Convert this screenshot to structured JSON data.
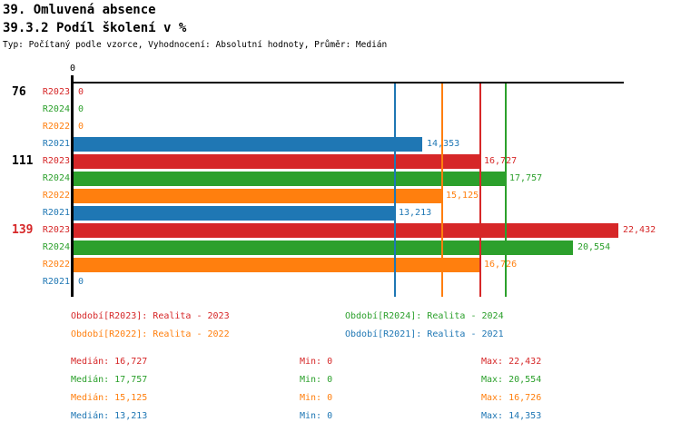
{
  "header": {
    "title1": "39. Omluvená absence",
    "title2": "39.3.2 Podíl školení v %",
    "meta": "Typ: Počítaný podle vzorce, Vyhodnocení: Absolutní hodnoty, Průměr: Medián"
  },
  "axis": {
    "zero_tick": "0"
  },
  "series_colors": {
    "R2023": "#d62728",
    "R2024": "#2ca02c",
    "R2022": "#ff7f0e",
    "R2021": "#1f77b4"
  },
  "chart_data": {
    "type": "bar",
    "orientation": "horizontal",
    "title": "39.3.2 Podíl školení v %",
    "xlabel": "",
    "ylabel": "",
    "xlim": [
      0,
      22432
    ],
    "x_tick_labels": [
      "0"
    ],
    "grid": false,
    "groups": [
      {
        "label": "76",
        "label_color": "#000000",
        "bars": [
          {
            "series": "R2023",
            "value": 0,
            "label": "0"
          },
          {
            "series": "R2024",
            "value": 0,
            "label": "0"
          },
          {
            "series": "R2022",
            "value": 0,
            "label": "0"
          },
          {
            "series": "R2021",
            "value": 14353,
            "label": "14,353"
          }
        ]
      },
      {
        "label": "111",
        "label_color": "#000000",
        "bars": [
          {
            "series": "R2023",
            "value": 16727,
            "label": "16,727"
          },
          {
            "series": "R2024",
            "value": 17757,
            "label": "17,757"
          },
          {
            "series": "R2022",
            "value": 15125,
            "label": "15,125"
          },
          {
            "series": "R2021",
            "value": 13213,
            "label": "13,213"
          }
        ]
      },
      {
        "label": "139",
        "label_color": "#d62728",
        "bars": [
          {
            "series": "R2023",
            "value": 22432,
            "label": "22,432"
          },
          {
            "series": "R2024",
            "value": 20554,
            "label": "20,554"
          },
          {
            "series": "R2022",
            "value": 16726,
            "label": "16,726"
          },
          {
            "series": "R2021",
            "value": 0,
            "label": "0"
          }
        ]
      }
    ],
    "median_lines": [
      {
        "series": "R2021",
        "value": 13213
      },
      {
        "series": "R2022",
        "value": 15125
      },
      {
        "series": "R2023",
        "value": 16727
      },
      {
        "series": "R2024",
        "value": 17757
      }
    ]
  },
  "legend": {
    "items": [
      {
        "series": "R2023",
        "text": "Období[R2023]: Realita - 2023"
      },
      {
        "series": "R2024",
        "text": "Období[R2024]: Realita - 2024"
      },
      {
        "series": "R2022",
        "text": "Období[R2022]: Realita - 2022"
      },
      {
        "series": "R2021",
        "text": "Období[R2021]: Realita - 2021"
      }
    ]
  },
  "stats": {
    "rows": [
      {
        "series": "R2023",
        "median": "Medián: 16,727",
        "min": "Min: 0",
        "max": "Max: 22,432"
      },
      {
        "series": "R2024",
        "median": "Medián: 17,757",
        "min": "Min: 0",
        "max": "Max: 20,554"
      },
      {
        "series": "R2022",
        "median": "Medián: 15,125",
        "min": "Min: 0",
        "max": "Max: 16,726"
      },
      {
        "series": "R2021",
        "median": "Medián: 13,213",
        "min": "Min: 0",
        "max": "Max: 14,353"
      }
    ]
  }
}
